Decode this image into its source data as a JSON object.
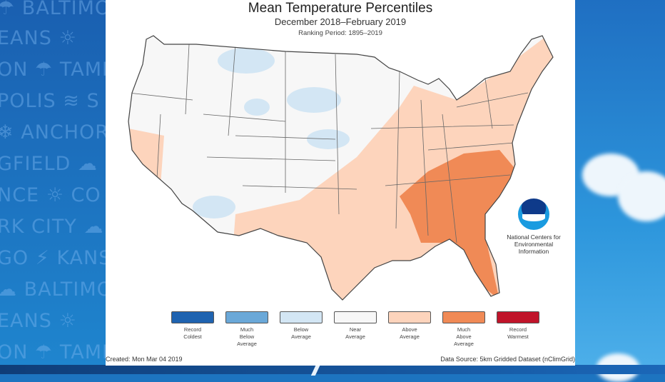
{
  "background": {
    "cities": [
      "BALTIMORE",
      "EANS",
      "ON",
      "TAMPA",
      "POLIS",
      "ANCHORAGE",
      "GFIELD",
      "NCE",
      "CO",
      "RK CITY",
      "GO",
      "KANSAS",
      "BALTIMORE",
      "EANS",
      "ON",
      "TAMPA"
    ]
  },
  "map": {
    "title": "Mean Temperature Percentiles",
    "subtitle": "December 2018–February 2019",
    "ranking": "Ranking Period: 1895–2019",
    "legend": [
      {
        "label": "Record\nColdest",
        "color": "#1f63b0"
      },
      {
        "label": "Much\nBelow\nAverage",
        "color": "#6aa8d8"
      },
      {
        "label": "Below\nAverage",
        "color": "#d3e6f4"
      },
      {
        "label": "Near\nAverage",
        "color": "#f7f7f7"
      },
      {
        "label": "Above\nAverage",
        "color": "#fdd4bc"
      },
      {
        "label": "Much\nAbove\nAverage",
        "color": "#f08a56"
      },
      {
        "label": "Record\nWarmest",
        "color": "#c0142a"
      }
    ],
    "created": "Created: Mon Mar 04 2019",
    "source": "Data Source: 5km Gridded Dataset (nClimGrid)",
    "org": "National Centers for\nEnvironmental\nInformation",
    "logo_text": "NOAA"
  }
}
